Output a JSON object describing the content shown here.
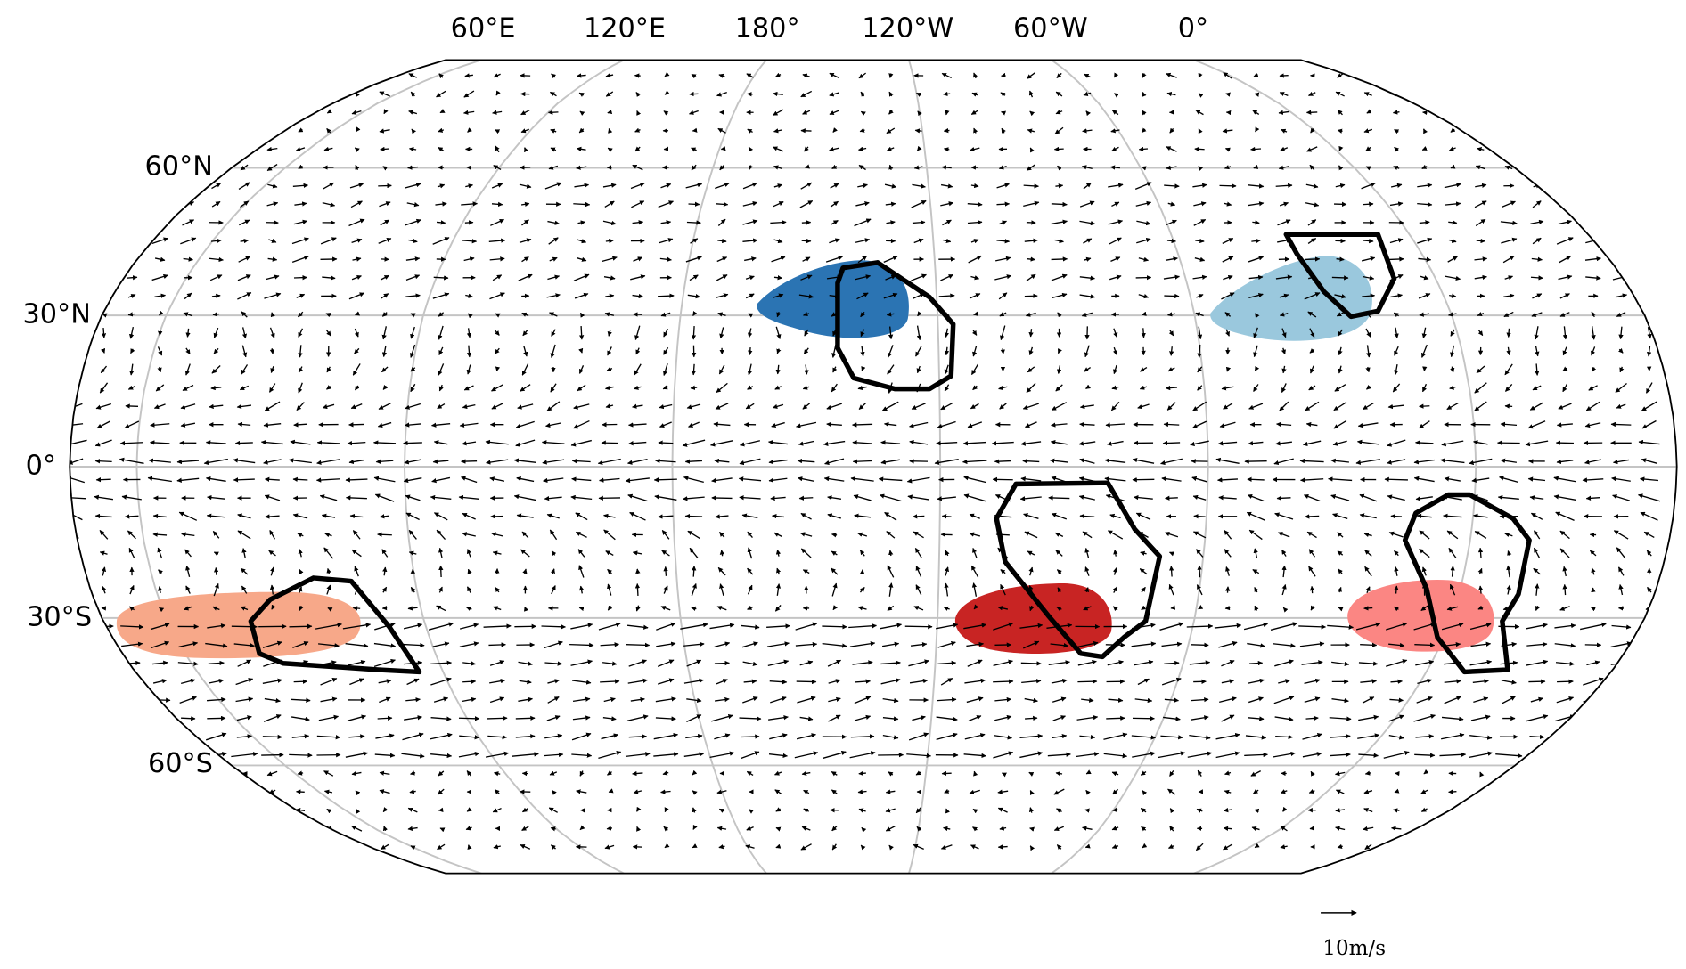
{
  "map": {
    "lon_labels": [
      "60°E",
      "120°E",
      "180°",
      "120°W",
      "60°W",
      "0°"
    ],
    "lat_labels": [
      "60°N",
      "30°N",
      "0°",
      "30°S",
      "60°S"
    ],
    "scale_label": "10m/s"
  }
}
